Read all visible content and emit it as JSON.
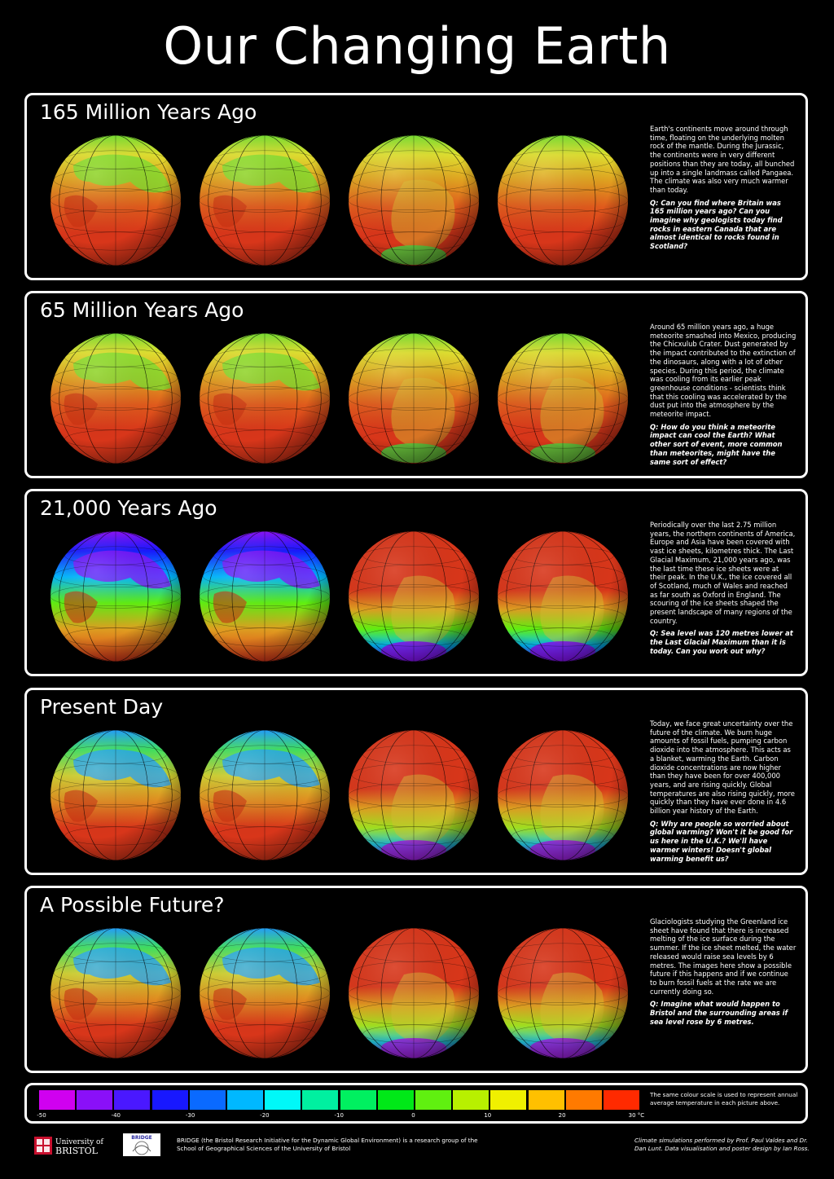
{
  "title": "Our Changing Earth",
  "colors": {
    "background": "#000000",
    "panel_border": "#ffffff",
    "hot": "#e8361c",
    "mid": "#e0a020",
    "cool": "#40d040",
    "cold": "#2040ff",
    "ice": "#c020e0"
  },
  "panels": [
    {
      "heading": "165 Million Years Ago",
      "text": "Earth's continents move around through time, floating on the underlying molten rock of the mantle.  During the Jurassic, the continents were in very different positions than they are today, all bunched up into a single landmass called Pangaea.  The climate was also very much warmer than today.",
      "question": "Q: Can you find where Britain was 165 million years ago?  Can you imagine why geologists today find rocks in eastern Canada that are almost identical to rocks found in Scotland?",
      "globes": [
        {
          "palette": "warm",
          "land": "north"
        },
        {
          "palette": "warm",
          "land": "north"
        },
        {
          "palette": "warm",
          "land": "south"
        },
        {
          "palette": "warm",
          "land": "none"
        }
      ]
    },
    {
      "heading": "65 Million Years Ago",
      "text": "Around 65 million years ago, a huge meteorite smashed into Mexico, producing the Chicxulub Crater.  Dust generated by the impact contributed to the extinction of the dinosaurs, along with a lot of other species.  During this period, the climate was cooling from its earlier peak greenhouse conditions - scientists think that this cooling was accelerated by the dust put into the atmosphere by the meteorite impact.",
      "question": "Q: How do you think a meteorite impact can cool the Earth?  What other sort of event, more common than meteorites, might have the same sort of effect?",
      "globes": [
        {
          "palette": "warm",
          "land": "north"
        },
        {
          "palette": "warm",
          "land": "north"
        },
        {
          "palette": "warm",
          "land": "south"
        },
        {
          "palette": "warm",
          "land": "south"
        }
      ]
    },
    {
      "heading": "21,000 Years Ago",
      "text": "Periodically over the last 2.75 million years, the northern continents of America, Europe and Asia have been covered with vast ice sheets, kilometres thick.  The Last Glacial Maximum, 21,000 years ago, was the last time these ice sheets were at their peak.  In the U.K., the ice covered all of Scotland, much of Wales and reached as far south as Oxford in England.  The scouring of the ice sheets shaped the present landscape of many regions of the country.",
      "question": "Q: Sea level was 120 metres lower at the Last Glacial Maximum than it is today.  Can you work out why?",
      "globes": [
        {
          "palette": "glacial-north",
          "land": "north"
        },
        {
          "palette": "glacial-north",
          "land": "north"
        },
        {
          "palette": "glacial-south",
          "land": "south"
        },
        {
          "palette": "glacial-south",
          "land": "south"
        }
      ]
    },
    {
      "heading": "Present Day",
      "text": "Today, we face great uncertainty over the future of the climate.  We burn huge amounts of fossil fuels, pumping carbon dioxide into the atmosphere.  This acts as a blanket, warming the Earth.  Carbon dioxide concentrations are now higher than they have been for over 400,000 years, and are rising quickly.  Global temperatures are also rising quickly, more quickly than they have ever done in 4.6 billion year history of the Earth.",
      "question": "Q: Why are people so worried about global warming?  Won't it be good for us here in the U.K.?  We'll have warmer winters!  Doesn't global warming benefit us?",
      "globes": [
        {
          "palette": "present-north",
          "land": "north"
        },
        {
          "palette": "present-north",
          "land": "north"
        },
        {
          "palette": "present-south",
          "land": "south"
        },
        {
          "palette": "present-south",
          "land": "south"
        }
      ]
    },
    {
      "heading": "A Possible Future?",
      "text": "Glaciologists studying the Greenland ice sheet have found that there is increased melting of the ice surface during the summer.  If the ice sheet melted, the water released would raise sea levels by 6 metres.  The images here show a possible future if this happens and if we continue to burn fossil fuels at the rate we are currently doing so.",
      "question": "Q: Imagine what would happen to Bristol and the surrounding areas if sea level rose by 6 metres.",
      "globes": [
        {
          "palette": "present-north",
          "land": "north"
        },
        {
          "palette": "present-north",
          "land": "north"
        },
        {
          "palette": "present-south",
          "land": "south"
        },
        {
          "palette": "present-south",
          "land": "south"
        }
      ]
    }
  ],
  "scale": {
    "colors": [
      "#d000f0",
      "#8a10f8",
      "#4a18ff",
      "#1818ff",
      "#0a6aff",
      "#00b8ff",
      "#00f8f8",
      "#00f0a0",
      "#00f060",
      "#00e818",
      "#60f010",
      "#b8f000",
      "#f0f000",
      "#ffc000",
      "#ff7a00",
      "#ff2a00"
    ],
    "ticks": [
      "-50",
      "-40",
      "-30",
      "-20",
      "-10",
      "0",
      "10",
      "20",
      "30 °C"
    ],
    "note": "The same colour scale is used to represent annual average temperature in each picture above."
  },
  "footer": {
    "bristol_logo_top": "University of",
    "bristol_logo_bottom": "BRISTOL",
    "bridge_logo": "BRIDGE",
    "description": "BRIDGE (the Bristol Research Initiative for the Dynamic Global Environment) is a research group of the School of Geographical Sciences of the University of Bristol",
    "credits": "Climate simulations performed by Prof. Paul Valdes and Dr. Dan Lunt.  Data visualisation and poster design by Ian Ross."
  }
}
